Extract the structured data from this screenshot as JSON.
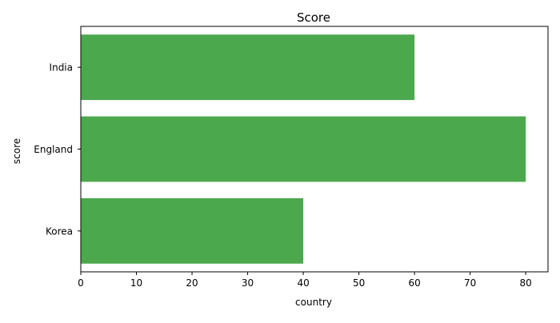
{
  "chart_data": {
    "type": "bar",
    "orientation": "horizontal",
    "title": "Score",
    "xlabel": "country",
    "ylabel": "score",
    "categories": [
      "India",
      "England",
      "Korea"
    ],
    "values": [
      60,
      80,
      40
    ],
    "xlim": [
      0,
      84
    ],
    "xticks": [
      0,
      10,
      20,
      30,
      40,
      50,
      60,
      70,
      80
    ],
    "bar_color": "#4ca84c",
    "grid": false,
    "legend": false
  }
}
